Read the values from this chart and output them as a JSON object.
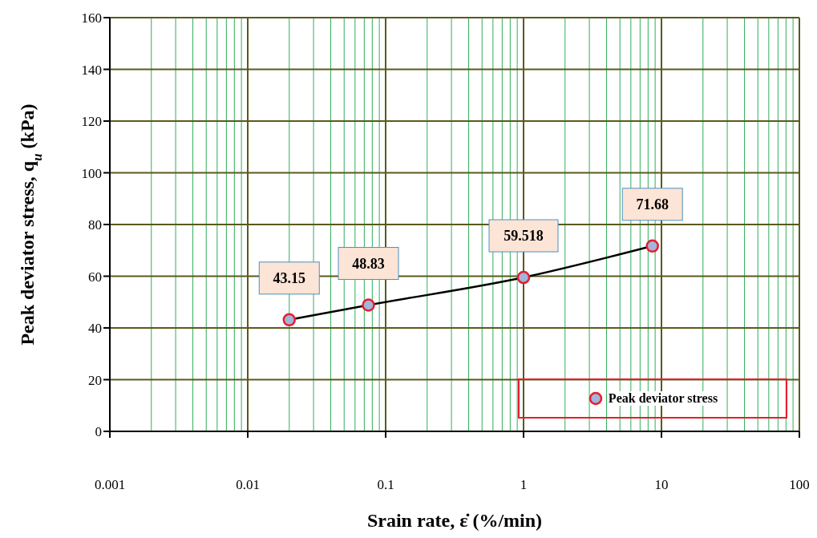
{
  "chart_data": {
    "type": "line",
    "xlabel": "Srain rate, ε̇ (%/min)",
    "ylabel": "Peak deviator stress, q$_{u}$ (kPa)",
    "log": "x",
    "x": [
      0.02,
      0.075,
      1,
      8.6
    ],
    "series": [
      {
        "name": "Peak deviator stress",
        "color": "#000000",
        "values": [
          43.15,
          48.83,
          59.518,
          71.68
        ]
      }
    ],
    "xlim": [
      0.001,
      100
    ],
    "xticks": [
      0.001,
      {
        "value": 0.002,
        "label": null
      },
      {
        "value": 0.003,
        "label": null
      },
      {
        "value": 0.004,
        "label": null
      },
      {
        "value": 0.005,
        "label": null
      },
      {
        "value": 0.006,
        "label": null
      },
      {
        "value": 0.007,
        "label": null
      },
      {
        "value": 0.008,
        "label": null
      },
      {
        "value": 0.009,
        "label": null
      },
      0.01,
      {
        "value": 0.02,
        "label": null
      },
      {
        "value": 0.03,
        "label": null
      },
      {
        "value": 0.04,
        "label": null
      },
      {
        "value": 0.05,
        "label": null
      },
      {
        "value": 0.06,
        "label": null
      },
      {
        "value": 0.07,
        "label": null
      },
      {
        "value": 0.08,
        "label": null
      },
      {
        "value": 0.09,
        "label": null
      },
      0.1,
      {
        "value": 0.2,
        "label": null
      },
      {
        "value": 0.3,
        "label": null
      },
      {
        "value": 0.4,
        "label": null
      },
      {
        "value": 0.5,
        "label": null
      },
      {
        "value": 0.6,
        "label": null
      },
      {
        "value": 0.7,
        "label": null
      },
      {
        "value": 0.8,
        "label": null
      },
      {
        "value": 0.9,
        "label": null
      },
      1,
      {
        "value": 2,
        "label": null
      },
      {
        "value": 3,
        "label": null
      },
      {
        "value": 4,
        "label": null
      },
      {
        "value": 5,
        "label": null
      },
      {
        "value": 6,
        "label": null
      },
      {
        "value": 7,
        "label": null
      },
      {
        "value": 8,
        "label": null
      },
      {
        "value": 9,
        "label": null
      },
      10,
      {
        "value": 20,
        "label": null
      },
      {
        "value": 30,
        "label": null
      },
      {
        "value": 40,
        "label": null
      },
      {
        "value": 50,
        "label": null
      },
      {
        "value": 60,
        "label": null
      },
      {
        "value": 70,
        "label": null
      },
      {
        "value": 80,
        "label": null
      },
      {
        "value": 90,
        "label": null
      },
      100
    ],
    "ylim": [
      0,
      160
    ],
    "yticks": [
      0,
      20,
      40,
      60,
      80,
      100,
      120,
      140,
      160
    ],
    "grid": true,
    "legend": "bottom right",
    "marker": "circle",
    "line_style": "solid",
    "data_labels": true
  }
}
